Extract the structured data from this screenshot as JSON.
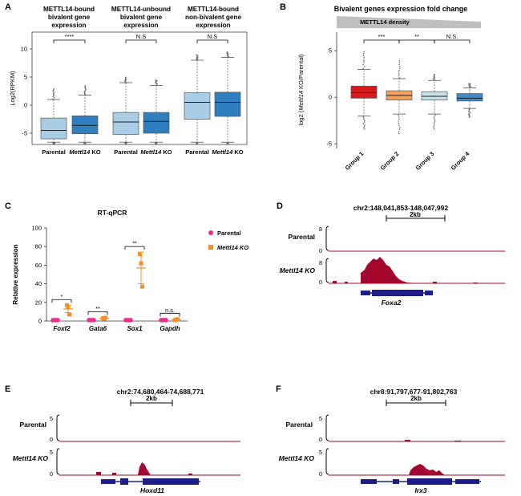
{
  "panels": {
    "A": {
      "letter": "A",
      "groups": [
        {
          "title": [
            "METTL14-bound",
            "bivalent gene",
            "expression"
          ],
          "sig": "****"
        },
        {
          "title": [
            "METTL14-unbound",
            "bivalent gene",
            "expression"
          ],
          "sig": "N.S"
        },
        {
          "title": [
            "METTL14-bound",
            "non-bivalent gene",
            "expression"
          ],
          "sig": "N.S"
        }
      ],
      "x_labels": [
        {
          "prefix": "",
          "italic": "",
          "suffix": "Parental"
        },
        {
          "prefix": "",
          "italic": "Mettl14",
          "suffix": " KO"
        },
        {
          "prefix": "",
          "italic": "",
          "suffix": "Parental"
        },
        {
          "prefix": "",
          "italic": "Mettl14",
          "suffix": " KO"
        },
        {
          "prefix": "",
          "italic": "",
          "suffix": "Parental"
        },
        {
          "prefix": "",
          "italic": "Mettl14",
          "suffix": " KO"
        }
      ]
    },
    "B": {
      "letter": "B",
      "title": "Bivalent genes expression fold change",
      "subtitle": "METTL14 density",
      "ylabel_pre": "log2 (",
      "ylabel_it": "Mettl14",
      "ylabel_post": " KO/Parental)",
      "sig": [
        "***",
        "**",
        "N.S."
      ]
    },
    "C": {
      "letter": "C"
    },
    "D": {
      "letter": "D",
      "coord": "chr2:148,041,853-148,047,992",
      "scale": "2kb",
      "track_labels": [
        "Parental",
        "Mettl14 KO"
      ],
      "ymax": "8",
      "ymin": "0",
      "gene": "Foxa2"
    },
    "E": {
      "letter": "E",
      "coord": "chr2:74,680,464-74,688,771",
      "scale": "2kb",
      "track_labels": [
        "Parental",
        "Mettl14 KO"
      ],
      "ymax": "5",
      "ymin": "0",
      "gene": "Hoxd11"
    },
    "F": {
      "letter": "F",
      "coord": "chr8:91,797,677-91,802,763",
      "scale": "2kb",
      "track_labels": [
        "Parental",
        "Mettl14 KO"
      ],
      "ymax": "5",
      "ymin": "0",
      "gene": "Irx3"
    }
  },
  "colors": {
    "light_blue": "#a8cde4",
    "dark_blue": "#2f7fc0",
    "red": "#d7191c",
    "orange": "#f2a15a",
    "pale_blue": "#c5e0ee",
    "mid_blue": "#3a8ccc",
    "magenta": "#ec2f8f",
    "dark_orange": "#f0912a",
    "track_red": "#a3072e",
    "gene_navy": "#1d1d8a"
  },
  "chart_data": [
    {
      "id": "A",
      "type": "box",
      "ylabel": "Log2(RPKM)",
      "ylim": [
        -7,
        13
      ],
      "yticks": [
        -5,
        0,
        5,
        10
      ],
      "boxes": [
        {
          "q1": -6.0,
          "median": -4.5,
          "q3": -2.3,
          "wlo": -6.6,
          "whi": 1.0,
          "out_lo": -7,
          "out_hi": 3.0,
          "fill": "light_blue"
        },
        {
          "q1": -5.1,
          "median": -3.6,
          "q3": -1.9,
          "wlo": -6.6,
          "whi": 1.8,
          "out_lo": -7,
          "out_hi": 3.5,
          "fill": "dark_blue"
        },
        {
          "q1": -5.2,
          "median": -3.0,
          "q3": -1.3,
          "wlo": -6.6,
          "whi": 4.0,
          "out_lo": -7,
          "out_hi": 5.0,
          "fill": "light_blue"
        },
        {
          "q1": -5.0,
          "median": -2.9,
          "q3": -1.3,
          "wlo": -6.6,
          "whi": 3.5,
          "out_lo": -7,
          "out_hi": 4.5,
          "fill": "dark_blue"
        },
        {
          "q1": -2.5,
          "median": 0.5,
          "q3": 2.2,
          "wlo": -6.6,
          "whi": 8.0,
          "out_lo": -7,
          "out_hi": 9.0,
          "fill": "light_blue"
        },
        {
          "q1": -2.0,
          "median": 0.5,
          "q3": 2.3,
          "wlo": -6.6,
          "whi": 8.5,
          "out_lo": -7,
          "out_hi": 9.5,
          "fill": "dark_blue"
        }
      ]
    },
    {
      "id": "B",
      "type": "box",
      "categories": [
        "Group 1",
        "Group 2",
        "Group 3",
        "Group 4"
      ],
      "ylim": [
        -5.5,
        7
      ],
      "yticks": [
        -5,
        0,
        5
      ],
      "boxes": [
        {
          "q1": -0.1,
          "median": 0.5,
          "q3": 1.2,
          "wlo": -2.0,
          "whi": 3.0,
          "out_lo": -3.5,
          "out_hi": 5.0,
          "fill": "red"
        },
        {
          "q1": -0.3,
          "median": 0.2,
          "q3": 0.7,
          "wlo": -1.8,
          "whi": 2.0,
          "out_lo": -4.0,
          "out_hi": 4.0,
          "fill": "orange"
        },
        {
          "q1": -0.3,
          "median": 0.1,
          "q3": 0.6,
          "wlo": -1.8,
          "whi": 1.8,
          "out_lo": -3.5,
          "out_hi": 2.5,
          "fill": "pale_blue"
        },
        {
          "q1": -0.4,
          "median": -0.1,
          "q3": 0.4,
          "wlo": -1.2,
          "whi": 1.0,
          "out_lo": -2.2,
          "out_hi": 1.5,
          "fill": "mid_blue"
        }
      ]
    },
    {
      "id": "C",
      "type": "scatter",
      "title": "RT-qPCR",
      "ylabel": "Relative expression",
      "ylim": [
        0,
        100
      ],
      "yticks": [
        0,
        20,
        40,
        60,
        80,
        100
      ],
      "categories": [
        "Foxf2",
        "Gata6",
        "Sox1",
        "Gapdh"
      ],
      "sig": [
        "*",
        "**",
        "**",
        "n.s."
      ],
      "series": [
        {
          "name": "Parental",
          "color": "magenta",
          "marker": "circle",
          "mean": [
            1,
            1,
            1,
            1
          ],
          "points": [
            [
              1,
              1,
              1
            ],
            [
              1,
              1,
              1
            ],
            [
              1,
              1,
              1
            ],
            [
              1,
              1,
              1
            ]
          ]
        },
        {
          "name": "Mettl14 KO",
          "color": "dark_orange",
          "marker": "square",
          "mean": [
            13,
            3,
            57,
            1.5
          ],
          "points": [
            [
              17,
              15,
              7
            ],
            [
              3,
              2.5,
              3.5
            ],
            [
              72,
              62,
              37
            ],
            [
              1,
              1.5,
              2
            ]
          ],
          "err": [
            4,
            1,
            17,
            0.8
          ]
        }
      ],
      "legend": [
        "Parental",
        "Mettl14 KO"
      ]
    }
  ]
}
